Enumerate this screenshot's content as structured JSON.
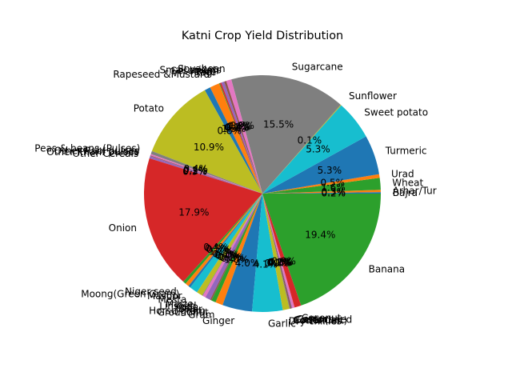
{
  "chart_data": {
    "type": "pie",
    "title": "Katni Crop Yield Distribution",
    "start_angle_deg": 0,
    "direction": "counterclockwise",
    "autopct_format": "{:.1f}%",
    "slices": [
      {
        "label": "Bajra",
        "value": 0.2,
        "color": "#1f77b4"
      },
      {
        "label": "Arhar/Tur",
        "value": 0.3,
        "color": "#ff7f0e"
      },
      {
        "label": "Wheat",
        "value": 1.6,
        "color": "#2ca02c"
      },
      {
        "label": "Urad",
        "value": 0.5,
        "color": "#ff7f0e"
      },
      {
        "label": "Turmeric",
        "value": 5.3,
        "color": "#1f77b4"
      },
      {
        "label": "Sweet potato",
        "value": 5.3,
        "color": "#17becf"
      },
      {
        "label": "Sunflower",
        "value": 0.1,
        "color": "#bcbd22"
      },
      {
        "label": "Sugarcane",
        "value": 15.5,
        "color": "#7f7f7f"
      },
      {
        "label": "Soyabean",
        "value": 0.7,
        "color": "#e377c2"
      },
      {
        "label": "Small millets",
        "value": 0.3,
        "color": "#8c564b"
      },
      {
        "label": "Sesamum",
        "value": 0.4,
        "color": "#9467bd"
      },
      {
        "label": "Rice",
        "value": 0.2,
        "color": "#d62728"
      },
      {
        "label": "Ragi",
        "value": 0.1,
        "color": "#2ca02c"
      },
      {
        "label": "Rapeseed &Mustard",
        "value": 1.3,
        "color": "#ff7f0e"
      },
      {
        "label": "",
        "value": 0.8,
        "color": "#1f77b4"
      },
      {
        "label": "Potato",
        "value": 10.9,
        "color": "#bcbd22"
      },
      {
        "label": "Peas & beans (Pulses)",
        "value": 0.4,
        "color": "#7f7f7f"
      },
      {
        "label": "Other Rabi pulses",
        "value": 0.2,
        "color": "#e377c2"
      },
      {
        "label": "Other Kharif pulses",
        "value": 0.1,
        "color": "#8c564b"
      },
      {
        "label": "Other Cereals",
        "value": 0.3,
        "color": "#9467bd"
      },
      {
        "label": "Onion",
        "value": 17.9,
        "color": "#d62728"
      },
      {
        "label": "Niger seed",
        "value": 0.4,
        "color": "#2ca02c"
      },
      {
        "label": "Moong(Green Gram)",
        "value": 0.5,
        "color": "#ff7f0e"
      },
      {
        "label": "Masoor",
        "value": 0.3,
        "color": "#1f77b4"
      },
      {
        "label": "Mesta",
        "value": 1.1,
        "color": "#17becf"
      },
      {
        "label": "Maize",
        "value": 0.8,
        "color": "#bcbd22"
      },
      {
        "label": "Linseed",
        "value": 0.1,
        "color": "#7f7f7f"
      },
      {
        "label": "Kodo",
        "value": 0.4,
        "color": "#e377c2"
      },
      {
        "label": "Jowar",
        "value": 0.7,
        "color": "#9467bd"
      },
      {
        "label": "Horse-gram",
        "value": 0.2,
        "color": "#8c564b"
      },
      {
        "label": "Groundnut",
        "value": 0.6,
        "color": "#2ca02c"
      },
      {
        "label": "Gram",
        "value": 1.0,
        "color": "#ff7f0e"
      },
      {
        "label": "Ginger",
        "value": 4.0,
        "color": "#1f77b4"
      },
      {
        "label": "Garlic",
        "value": 4.1,
        "color": "#17becf"
      },
      {
        "label": "Dry chillies",
        "value": 0.9,
        "color": "#bcbd22"
      },
      {
        "label": "Cotton(lint)",
        "value": 0.1,
        "color": "#7f7f7f"
      },
      {
        "label": "Coriander",
        "value": 0.2,
        "color": "#8c564b"
      },
      {
        "label": "Castor seed",
        "value": 0.1,
        "color": "#9467bd"
      },
      {
        "label": "Castor",
        "value": 0.3,
        "color": "#e377c2"
      },
      {
        "label": "Coconut",
        "value": 0.9,
        "color": "#d62728"
      },
      {
        "label": "Banana",
        "value": 19.4,
        "color": "#2ca02c"
      }
    ]
  }
}
